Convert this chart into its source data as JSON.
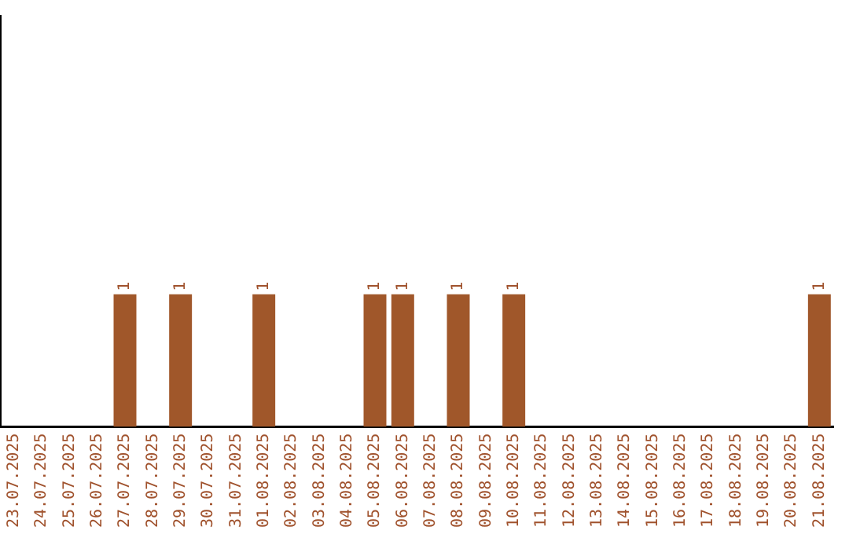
{
  "chart_data": {
    "type": "bar",
    "categories": [
      "23.07.2025",
      "24.07.2025",
      "25.07.2025",
      "26.07.2025",
      "27.07.2025",
      "28.07.2025",
      "29.07.2025",
      "30.07.2025",
      "31.07.2025",
      "01.08.2025",
      "02.08.2025",
      "03.08.2025",
      "04.08.2025",
      "05.08.2025",
      "06.08.2025",
      "07.08.2025",
      "08.08.2025",
      "09.08.2025",
      "10.08.2025",
      "11.08.2025",
      "12.08.2025",
      "13.08.2025",
      "14.08.2025",
      "15.08.2025",
      "16.08.2025",
      "17.08.2025",
      "18.08.2025",
      "19.08.2025",
      "20.08.2025",
      "21.08.2025"
    ],
    "values": [
      0,
      0,
      0,
      0,
      1,
      0,
      1,
      0,
      0,
      1,
      0,
      0,
      0,
      1,
      1,
      0,
      1,
      0,
      1,
      0,
      0,
      0,
      0,
      0,
      0,
      0,
      0,
      0,
      0,
      1
    ],
    "value_labels": [
      null,
      null,
      null,
      null,
      "1",
      null,
      "1",
      null,
      null,
      "1",
      null,
      null,
      null,
      "1",
      "1",
      null,
      "1",
      null,
      "1",
      null,
      null,
      null,
      null,
      null,
      null,
      null,
      null,
      null,
      null,
      "1"
    ],
    "color": "#a0572a",
    "ylim": [
      0,
      3.1
    ],
    "grid": false,
    "legend": false
  }
}
